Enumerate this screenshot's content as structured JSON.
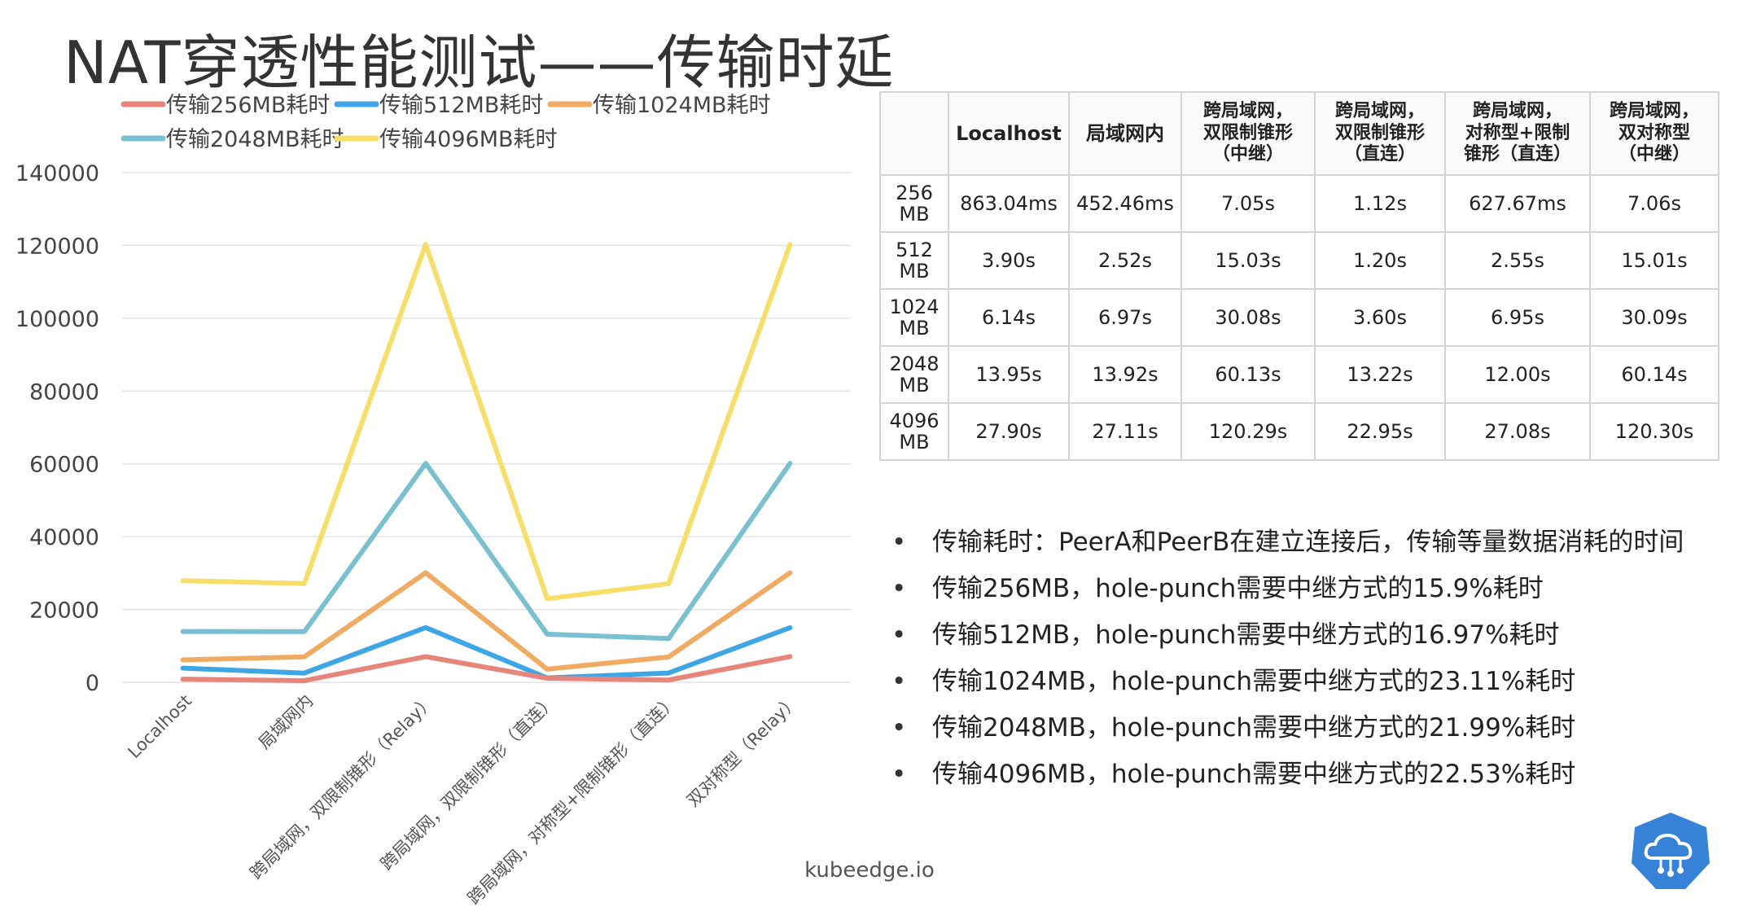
{
  "slide": {
    "title": "NAT穿透性能测试——传输时延",
    "footer": "kubeedge.io"
  },
  "colors": {
    "s256": "#e8857b",
    "s512": "#3fa6e6",
    "s1024": "#f0aa62",
    "s2048": "#79c0d0",
    "s4096": "#f6de68",
    "logo": "#3582d8"
  },
  "chart_data": {
    "type": "line",
    "title": "",
    "xlabel": "",
    "ylabel": "",
    "categories": [
      "Localhost",
      "局域网内",
      "跨局域网，双限制锥形（Relay）",
      "跨局域网，双限制锥形（直连）",
      "跨局域网，对称型+限制锥形（直连）",
      "双对称型（Relay）"
    ],
    "yticks": [
      0,
      20000,
      40000,
      60000,
      80000,
      100000,
      120000,
      140000
    ],
    "ylim": [
      0,
      140000
    ],
    "grid": true,
    "legend_position": "top-left",
    "series": [
      {
        "name": "传输256MB耗时",
        "color_key": "s256",
        "values": [
          863.04,
          452.46,
          7050,
          1120,
          627.67,
          7060
        ]
      },
      {
        "name": "传输512MB耗时",
        "color_key": "s512",
        "values": [
          3900,
          2520,
          15030,
          1200,
          2550,
          15010
        ]
      },
      {
        "name": "传输1024MB耗时",
        "color_key": "s1024",
        "values": [
          6140,
          6970,
          30080,
          3600,
          6950,
          30090
        ]
      },
      {
        "name": "传输2048MB耗时",
        "color_key": "s2048",
        "values": [
          13950,
          13920,
          60130,
          13220,
          12000,
          60140
        ]
      },
      {
        "name": "传输4096MB耗时",
        "color_key": "s4096",
        "values": [
          27900,
          27110,
          120290,
          22950,
          27080,
          120300
        ]
      }
    ]
  },
  "table": {
    "headers": [
      "",
      "Localhost",
      "局域网内",
      "跨局域网，\n双限制锥形\n（中继）",
      "跨局域网，\n双限制锥形\n（直连）",
      "跨局域网，\n对称型+限制\n锥形（直连）",
      "跨局域网，\n双对称型\n（中继）"
    ],
    "rows": [
      {
        "label": "256\nMB",
        "cells": [
          "863.04ms",
          "452.46ms",
          "7.05s",
          "1.12s",
          "627.67ms",
          "7.06s"
        ]
      },
      {
        "label": "512\nMB",
        "cells": [
          "3.90s",
          "2.52s",
          "15.03s",
          "1.20s",
          "2.55s",
          "15.01s"
        ]
      },
      {
        "label": "1024\nMB",
        "cells": [
          "6.14s",
          "6.97s",
          "30.08s",
          "3.60s",
          "6.95s",
          "30.09s"
        ]
      },
      {
        "label": "2048\nMB",
        "cells": [
          "13.95s",
          "13.92s",
          "60.13s",
          "13.22s",
          "12.00s",
          "60.14s"
        ]
      },
      {
        "label": "4096\nMB",
        "cells": [
          "27.90s",
          "27.11s",
          "120.29s",
          "22.95s",
          "27.08s",
          "120.30s"
        ]
      }
    ]
  },
  "bullets": [
    "传输耗时：PeerA和PeerB在建立连接后，传输等量数据消耗的时间",
    "传输256MB，hole-punch需要中继方式的15.9%耗时",
    "传输512MB，hole-punch需要中继方式的16.97%耗时",
    "传输1024MB，hole-punch需要中继方式的23.11%耗时",
    "传输2048MB，hole-punch需要中继方式的21.99%耗时",
    "传输4096MB，hole-punch需要中继方式的22.53%耗时"
  ],
  "logo": {
    "icon": "cloud-network-icon"
  }
}
